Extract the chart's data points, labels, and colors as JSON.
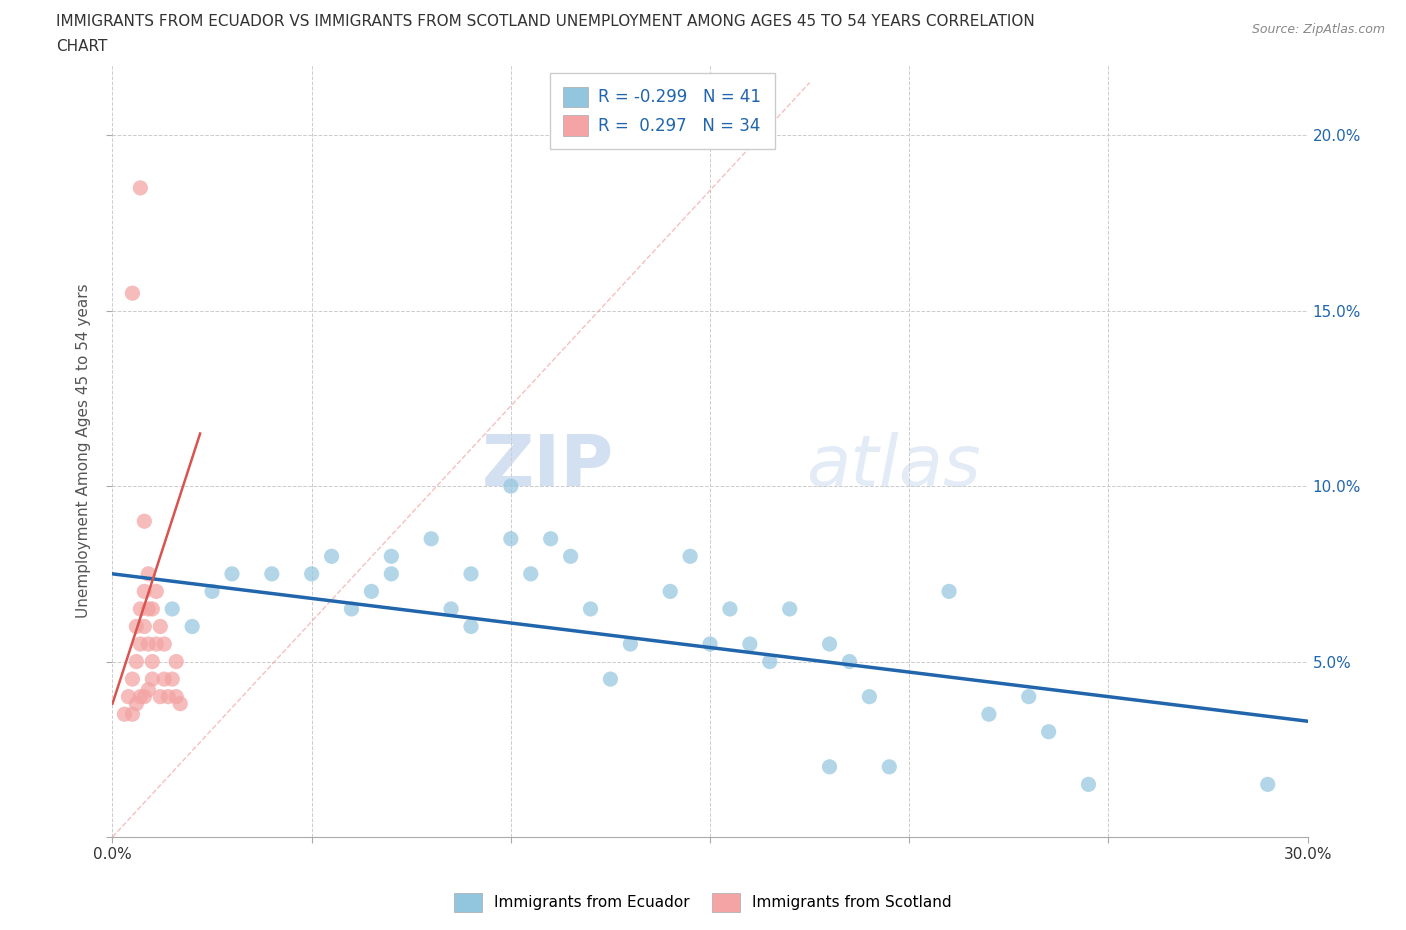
{
  "title_line1": "IMMIGRANTS FROM ECUADOR VS IMMIGRANTS FROM SCOTLAND UNEMPLOYMENT AMONG AGES 45 TO 54 YEARS CORRELATION",
  "title_line2": "CHART",
  "source": "Source: ZipAtlas.com",
  "ylabel": "Unemployment Among Ages 45 to 54 years",
  "xlim": [
    0.0,
    0.3
  ],
  "ylim": [
    0.0,
    0.22
  ],
  "xticks": [
    0.0,
    0.05,
    0.1,
    0.15,
    0.2,
    0.25,
    0.3
  ],
  "xticklabels": [
    "0.0%",
    "",
    "",
    "",
    "",
    "",
    "30.0%"
  ],
  "yticks": [
    0.0,
    0.05,
    0.1,
    0.15,
    0.2
  ],
  "yticklabels_right": [
    "",
    "5.0%",
    "10.0%",
    "15.0%",
    "20.0%"
  ],
  "ecuador_color": "#92c5de",
  "scotland_color": "#f4a4a4",
  "ecuador_R": -0.299,
  "ecuador_N": 41,
  "scotland_R": 0.297,
  "scotland_N": 34,
  "ecuador_scatter": [
    [
      0.015,
      0.065
    ],
    [
      0.02,
      0.06
    ],
    [
      0.025,
      0.07
    ],
    [
      0.03,
      0.075
    ],
    [
      0.04,
      0.075
    ],
    [
      0.05,
      0.075
    ],
    [
      0.055,
      0.08
    ],
    [
      0.06,
      0.065
    ],
    [
      0.065,
      0.07
    ],
    [
      0.07,
      0.075
    ],
    [
      0.07,
      0.08
    ],
    [
      0.08,
      0.085
    ],
    [
      0.085,
      0.065
    ],
    [
      0.09,
      0.075
    ],
    [
      0.09,
      0.06
    ],
    [
      0.1,
      0.1
    ],
    [
      0.1,
      0.085
    ],
    [
      0.105,
      0.075
    ],
    [
      0.11,
      0.085
    ],
    [
      0.115,
      0.08
    ],
    [
      0.12,
      0.065
    ],
    [
      0.125,
      0.045
    ],
    [
      0.13,
      0.055
    ],
    [
      0.14,
      0.07
    ],
    [
      0.145,
      0.08
    ],
    [
      0.15,
      0.055
    ],
    [
      0.155,
      0.065
    ],
    [
      0.16,
      0.055
    ],
    [
      0.165,
      0.05
    ],
    [
      0.17,
      0.065
    ],
    [
      0.18,
      0.055
    ],
    [
      0.185,
      0.05
    ],
    [
      0.19,
      0.04
    ],
    [
      0.21,
      0.07
    ],
    [
      0.22,
      0.035
    ],
    [
      0.23,
      0.04
    ],
    [
      0.235,
      0.03
    ],
    [
      0.245,
      0.015
    ],
    [
      0.18,
      0.02
    ],
    [
      0.195,
      0.02
    ],
    [
      0.29,
      0.015
    ]
  ],
  "scotland_scatter": [
    [
      0.003,
      0.035
    ],
    [
      0.004,
      0.04
    ],
    [
      0.005,
      0.035
    ],
    [
      0.005,
      0.045
    ],
    [
      0.006,
      0.038
    ],
    [
      0.006,
      0.05
    ],
    [
      0.006,
      0.06
    ],
    [
      0.007,
      0.04
    ],
    [
      0.007,
      0.055
    ],
    [
      0.007,
      0.065
    ],
    [
      0.008,
      0.04
    ],
    [
      0.008,
      0.06
    ],
    [
      0.008,
      0.07
    ],
    [
      0.008,
      0.09
    ],
    [
      0.009,
      0.042
    ],
    [
      0.009,
      0.055
    ],
    [
      0.009,
      0.065
    ],
    [
      0.009,
      0.075
    ],
    [
      0.01,
      0.045
    ],
    [
      0.01,
      0.05
    ],
    [
      0.01,
      0.065
    ],
    [
      0.011,
      0.055
    ],
    [
      0.011,
      0.07
    ],
    [
      0.012,
      0.04
    ],
    [
      0.012,
      0.06
    ],
    [
      0.013,
      0.045
    ],
    [
      0.013,
      0.055
    ],
    [
      0.014,
      0.04
    ],
    [
      0.015,
      0.045
    ],
    [
      0.016,
      0.04
    ],
    [
      0.016,
      0.05
    ],
    [
      0.017,
      0.038
    ],
    [
      0.005,
      0.155
    ],
    [
      0.007,
      0.185
    ]
  ],
  "ecuador_trendline": [
    [
      0.0,
      0.075
    ],
    [
      0.3,
      0.033
    ]
  ],
  "scotland_trendline": [
    [
      0.0,
      0.038
    ],
    [
      0.022,
      0.115
    ]
  ],
  "scotland_dashed_line": [
    [
      0.0,
      0.0
    ],
    [
      0.175,
      0.215
    ]
  ],
  "watermark_zip": "ZIP",
  "watermark_atlas": "atlas",
  "background_color": "#ffffff",
  "grid_color": "#cccccc",
  "title_color": "#555555",
  "axis_color": "#2166ac",
  "legend_label_color": "#2166ac"
}
